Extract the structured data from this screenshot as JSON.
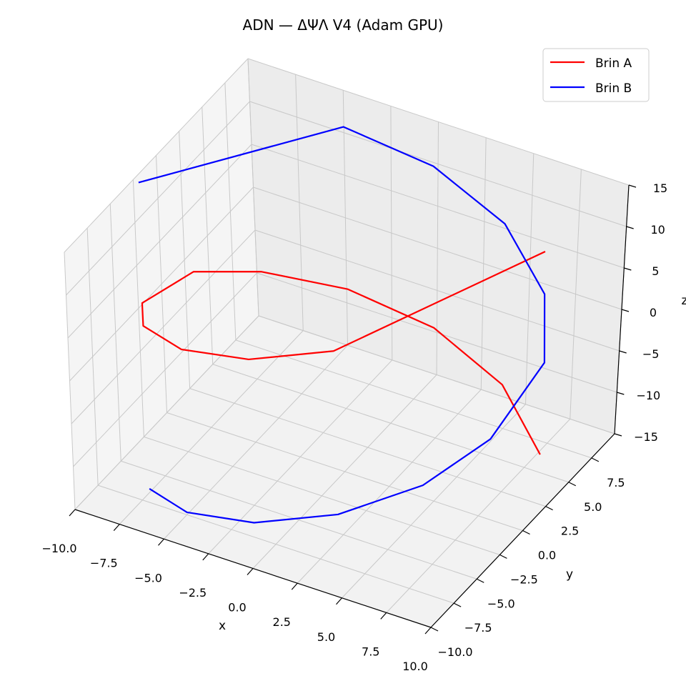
{
  "chart_data": {
    "type": "line",
    "subtype": "3d-line",
    "title": "ADN — ΔΨΛ V4 (Adam GPU)",
    "xlabel": "x",
    "ylabel": "y",
    "zlabel": "z",
    "xlim": [
      -10,
      10
    ],
    "ylim": [
      -10,
      10
    ],
    "zlim": [
      -15,
      15
    ],
    "xticks": [
      -10.0,
      -7.5,
      -5.0,
      -2.5,
      0.0,
      2.5,
      5.0,
      7.5,
      10.0
    ],
    "yticks": [
      -10.0,
      -7.5,
      -5.0,
      -2.5,
      0.0,
      2.5,
      5.0,
      7.5
    ],
    "zticks": [
      -15,
      -10,
      -5,
      0,
      5,
      10,
      15
    ],
    "xtick_labels": [
      "−10.0",
      "−7.5",
      "−5.0",
      "−2.5",
      "0.0",
      "2.5",
      "5.0",
      "7.5",
      "10.0"
    ],
    "ytick_labels": [
      "−10.0",
      "−7.5",
      "−5.0",
      "−2.5",
      "0.0",
      "2.5",
      "5.0",
      "7.5"
    ],
    "ztick_labels": [
      "−15",
      "−10",
      "−5",
      "0",
      "5",
      "10",
      "15"
    ],
    "grid": true,
    "legend_position": "top-right",
    "series": [
      {
        "name": "Brin A",
        "color": "#ff0000",
        "x": [
          7.66,
          4.11,
          -0.17,
          -4.4,
          -7.77,
          -9.63,
          -9.57,
          -7.62,
          -4.03,
          0.25,
          4.48,
          9.66
        ],
        "y": [
          6.43,
          9.12,
          10.0,
          8.98,
          6.29,
          2.71,
          -2.9,
          -6.48,
          -9.15,
          -10.0,
          -8.94,
          2.59
        ],
        "z": [
          -15.0,
          -12.27,
          -9.55,
          -6.82,
          -4.09,
          -1.36,
          1.36,
          4.09,
          6.82,
          9.55,
          12.27,
          15.0
        ]
      },
      {
        "name": "Brin B",
        "color": "#0000ff",
        "x": [
          -7.66,
          -4.11,
          0.17,
          4.4,
          7.77,
          9.63,
          9.57,
          7.62,
          4.03,
          -0.25,
          -4.48,
          -9.66
        ],
        "y": [
          -6.43,
          -9.12,
          -10.0,
          -8.98,
          -6.29,
          -2.71,
          2.9,
          6.48,
          9.15,
          10.0,
          8.94,
          -2.59
        ],
        "z": [
          -15.0,
          -12.27,
          -9.55,
          -6.82,
          -4.09,
          -1.36,
          1.36,
          4.09,
          6.82,
          9.55,
          12.27,
          15.0
        ]
      }
    ]
  }
}
